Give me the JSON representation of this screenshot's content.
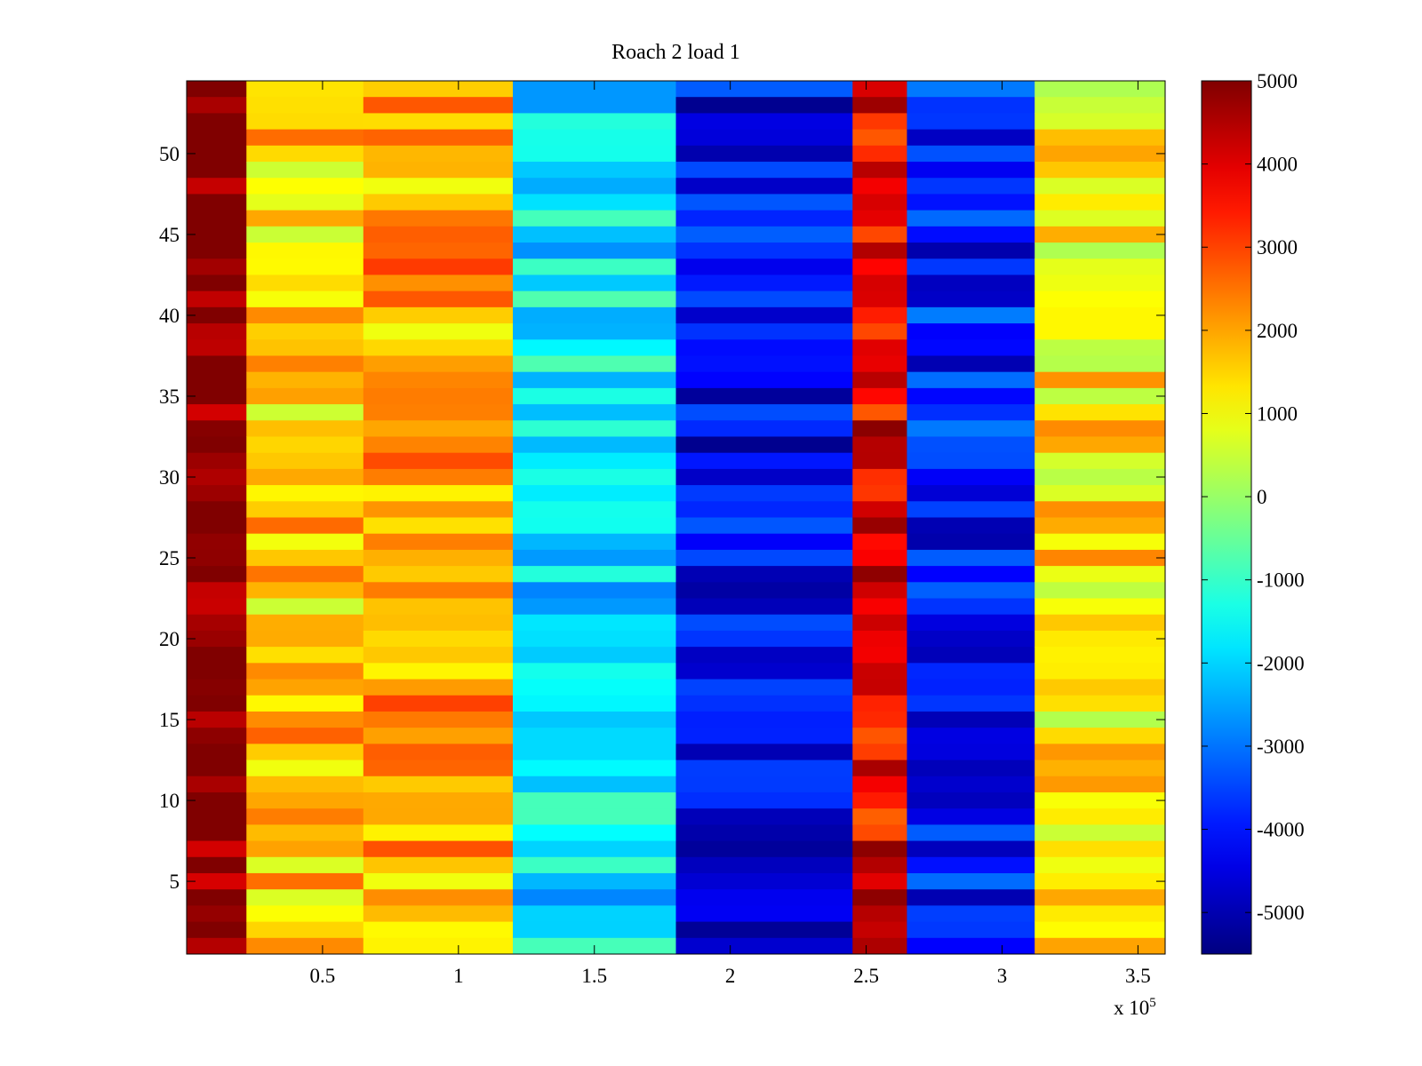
{
  "chart_data": {
    "type": "heatmap",
    "title": "Roach 2 load 1",
    "xlabel": "",
    "ylabel": "",
    "x_exponent_label": "x 10",
    "x_exponent_power": "5",
    "xlim": [
      0,
      3.6
    ],
    "ylim": [
      0.5,
      54.5
    ],
    "rows": 54,
    "x_ticks": [
      {
        "value": 0.5,
        "label": "0.5"
      },
      {
        "value": 1,
        "label": "1"
      },
      {
        "value": 1.5,
        "label": "1.5"
      },
      {
        "value": 2,
        "label": "2"
      },
      {
        "value": 2.5,
        "label": "2.5"
      },
      {
        "value": 3,
        "label": "3"
      },
      {
        "value": 3.5,
        "label": "3.5"
      }
    ],
    "y_ticks": [
      {
        "value": 5,
        "label": "5"
      },
      {
        "value": 10,
        "label": "10"
      },
      {
        "value": 15,
        "label": "15"
      },
      {
        "value": 20,
        "label": "20"
      },
      {
        "value": 25,
        "label": "25"
      },
      {
        "value": 30,
        "label": "30"
      },
      {
        "value": 35,
        "label": "35"
      },
      {
        "value": 40,
        "label": "40"
      },
      {
        "value": 45,
        "label": "45"
      },
      {
        "value": 50,
        "label": "50"
      }
    ],
    "colorbar": {
      "colormap": "jet",
      "clim": [
        -5500,
        5000
      ],
      "ticks": [
        {
          "value": 5000,
          "label": "5000"
        },
        {
          "value": 4000,
          "label": "4000"
        },
        {
          "value": 3000,
          "label": "3000"
        },
        {
          "value": 2000,
          "label": "2000"
        },
        {
          "value": 1000,
          "label": "1000"
        },
        {
          "value": 0,
          "label": "0"
        },
        {
          "value": -1000,
          "label": "-1000"
        },
        {
          "value": -2000,
          "label": "-2000"
        },
        {
          "value": -3000,
          "label": "-3000"
        },
        {
          "value": -4000,
          "label": "-4000"
        },
        {
          "value": -5000,
          "label": "-5000"
        }
      ]
    },
    "bands": [
      {
        "x": [
          0.0,
          0.22
        ],
        "value": 5000
      },
      {
        "x": [
          0.22,
          0.65
        ],
        "value": 1600
      },
      {
        "x": [
          0.65,
          1.2
        ],
        "value": 2000
      },
      {
        "x": [
          1.2,
          1.8
        ],
        "value": -1800
      },
      {
        "x": [
          1.8,
          2.45
        ],
        "value": -4300
      },
      {
        "x": [
          2.45,
          2.65
        ],
        "value": 3800
      },
      {
        "x": [
          2.65,
          3.12
        ],
        "value": -4000
      },
      {
        "x": [
          3.12,
          3.6
        ],
        "value": 1300
      }
    ]
  }
}
